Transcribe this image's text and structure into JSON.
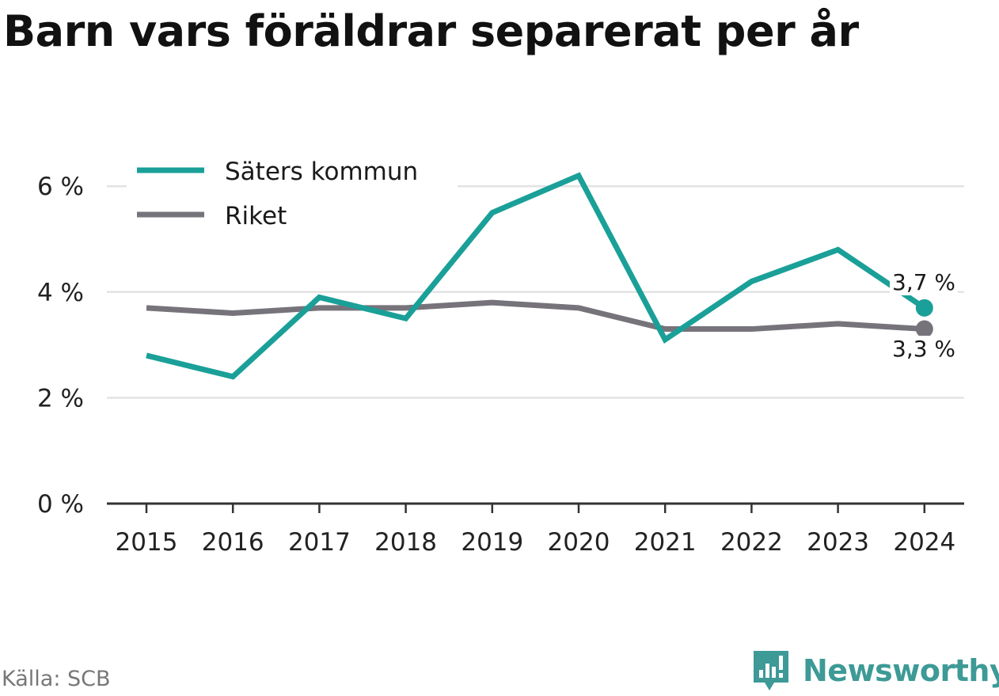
{
  "title": "Barn vars föräldrar separerat per år",
  "source": "Källa: SCB",
  "brand": "Newsworthy",
  "brand_icon": "bar-chart-logo-icon",
  "colors": {
    "saters": "#1aa098",
    "riket": "#76737b",
    "grid": "#e3e3e3",
    "axis": "#333333",
    "brand": "#3d9a96"
  },
  "chart_data": {
    "type": "line",
    "title": "Barn vars föräldrar separerat per år",
    "xlabel": "",
    "ylabel": "",
    "categories": [
      "2015",
      "2016",
      "2017",
      "2018",
      "2019",
      "2020",
      "2021",
      "2022",
      "2023",
      "2024"
    ],
    "y_ticks": [
      0,
      2,
      4,
      6
    ],
    "y_tick_labels": [
      "0 %",
      "2 %",
      "4 %",
      "6 %"
    ],
    "ylim": [
      0,
      6.6
    ],
    "grid": true,
    "legend_position": "top-left",
    "series": [
      {
        "name": "Säters kommun",
        "color": "#1aa098",
        "values": [
          2.8,
          2.4,
          3.9,
          3.5,
          5.5,
          6.2,
          3.1,
          4.2,
          4.8,
          3.7
        ],
        "end_label": "3,7 %"
      },
      {
        "name": "Riket",
        "color": "#76737b",
        "values": [
          3.7,
          3.6,
          3.7,
          3.7,
          3.8,
          3.7,
          3.3,
          3.3,
          3.4,
          3.3
        ],
        "end_label": "3,3 %"
      }
    ]
  }
}
